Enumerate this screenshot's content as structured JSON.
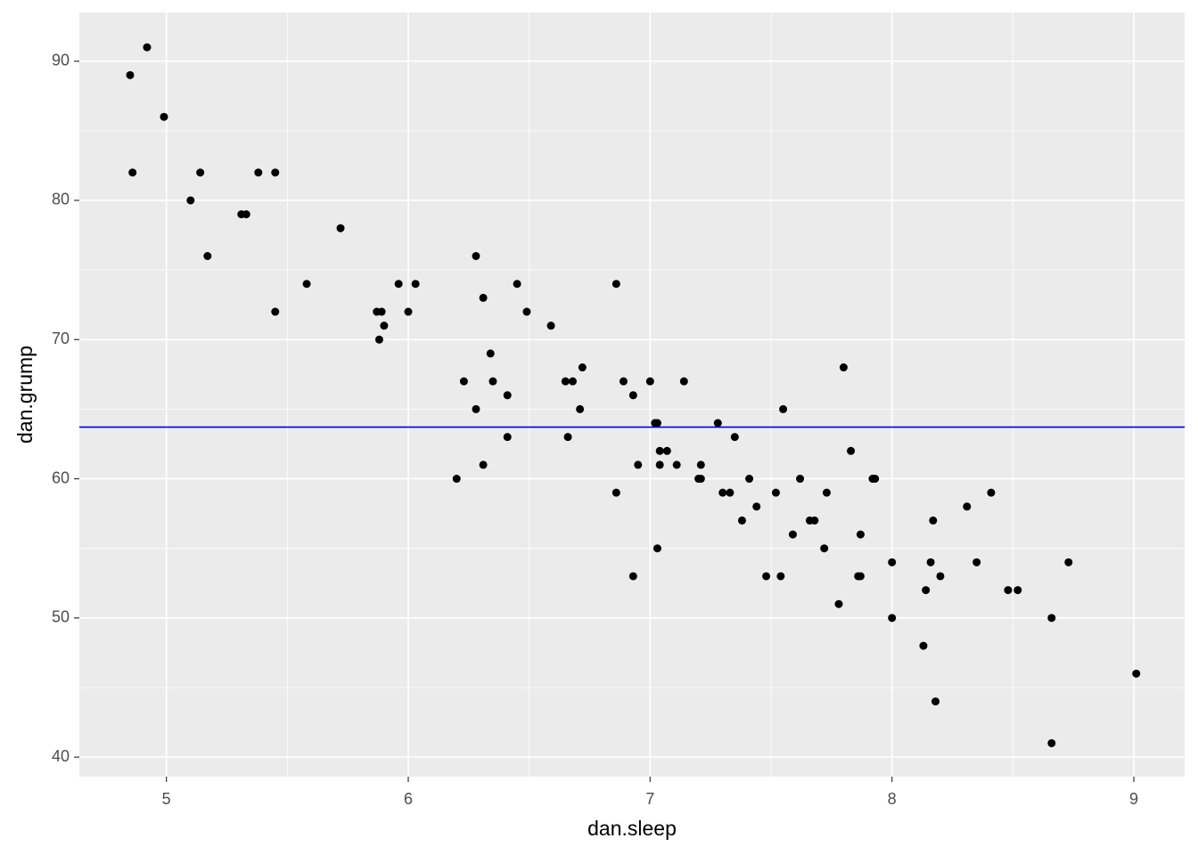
{
  "chart_data": {
    "type": "scatter",
    "x_label": "dan.sleep",
    "y_label": "dan.grump",
    "x": [
      4.85,
      4.92,
      4.86,
      4.99,
      5.1,
      5.14,
      5.17,
      5.31,
      5.33,
      5.38,
      5.45,
      5.45,
      5.58,
      5.72,
      5.87,
      5.89,
      5.88,
      5.9,
      5.96,
      6.0,
      6.03,
      6.2,
      6.23,
      6.28,
      6.28,
      6.31,
      6.31,
      6.34,
      6.35,
      6.41,
      6.41,
      6.45,
      6.49,
      6.59,
      6.65,
      6.66,
      6.68,
      6.71,
      6.72,
      6.86,
      6.86,
      6.89,
      6.93,
      6.93,
      6.95,
      7.0,
      7.02,
      7.03,
      7.03,
      7.04,
      7.04,
      7.07,
      7.11,
      7.14,
      7.2,
      7.21,
      7.21,
      7.28,
      7.3,
      7.33,
      7.35,
      7.38,
      7.41,
      7.44,
      7.48,
      7.52,
      7.54,
      7.55,
      7.59,
      7.62,
      7.66,
      7.68,
      7.72,
      7.73,
      7.78,
      7.8,
      7.83,
      7.86,
      7.87,
      7.87,
      7.92,
      7.93,
      8.0,
      8.0,
      8.13,
      8.14,
      8.16,
      8.17,
      8.18,
      8.2,
      8.31,
      8.35,
      8.41,
      8.48,
      8.52,
      8.66,
      8.66,
      8.73,
      9.01
    ],
    "values": [
      89,
      91,
      82,
      86,
      80,
      82,
      76,
      79,
      79,
      82,
      82,
      72,
      74,
      78,
      72,
      72,
      70,
      71,
      74,
      72,
      74,
      60,
      67,
      76,
      65,
      73,
      61,
      69,
      67,
      66,
      63,
      74,
      72,
      71,
      67,
      63,
      67,
      65,
      68,
      59,
      74,
      67,
      66,
      53,
      61,
      67,
      64,
      64,
      55,
      62,
      61,
      62,
      61,
      67,
      60,
      61,
      60,
      64,
      59,
      59,
      63,
      57,
      60,
      58,
      53,
      59,
      53,
      65,
      56,
      60,
      57,
      57,
      55,
      59,
      51,
      68,
      62,
      53,
      53,
      56,
      60,
      60,
      50,
      54,
      48,
      52,
      54,
      57,
      44,
      53,
      58,
      54,
      59,
      52,
      52,
      50,
      41,
      54,
      46
    ],
    "color": "#000000",
    "hline": 63.71,
    "hline_color": "#0000cd",
    "xlim": [
      4.64,
      9.21
    ],
    "ylim": [
      38.6,
      93.5
    ],
    "xticks": [
      5,
      6,
      7,
      8,
      9
    ],
    "yticks": [
      40,
      50,
      60,
      70,
      80,
      90
    ],
    "x_minor_grid": [
      5.5,
      6.5,
      7.5,
      8.5
    ],
    "y_minor_grid": [
      45,
      55,
      65,
      75,
      85
    ],
    "grid": true
  }
}
